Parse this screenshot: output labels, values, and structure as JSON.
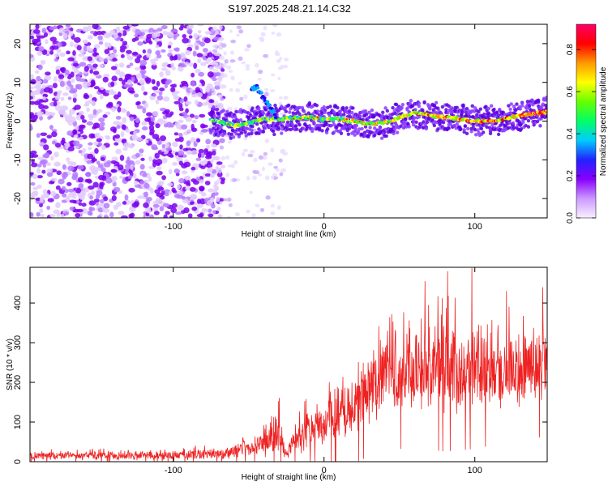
{
  "title": "S197.2025.248.21.14.C32",
  "chart_data": [
    {
      "type": "heatmap",
      "name": "spectrogram",
      "xlabel": "Height of straight line (km)",
      "ylabel": "Frequency (Hz)",
      "xlim": [
        -195,
        148
      ],
      "ylim": [
        -25,
        25
      ],
      "xticks": [
        -100,
        0,
        100
      ],
      "xtick_labels": [
        "-100",
        "0",
        "100"
      ],
      "yticks": [
        -20,
        -10,
        0,
        10,
        20
      ],
      "ytick_labels": [
        "-20",
        "-10",
        "0",
        "10",
        "20"
      ],
      "colorbar": {
        "label": "Normalized spectral amplitude",
        "range": [
          0,
          0.92
        ],
        "ticks": [
          0.0,
          0.2,
          0.4,
          0.6,
          0.8
        ],
        "tick_labels": [
          "0.0",
          "0.2",
          "0.4",
          "0.6",
          "0.8"
        ],
        "colormap": [
          "#f8f0ff",
          "#cc99ff",
          "#8800ff",
          "#2222ff",
          "#00ccff",
          "#00ff66",
          "#66ff00",
          "#ffff00",
          "#ff9900",
          "#ff0000",
          "#ff0066"
        ]
      },
      "features": {
        "noise_region_x": [
          -195,
          -75
        ],
        "sparse_region_x": [
          -75,
          -25
        ],
        "signal_start_x": -75,
        "signal_line": {
          "x": [
            -75,
            -60,
            -50,
            -45,
            -40,
            -30,
            -20,
            -10,
            0,
            10,
            20,
            30,
            40,
            50,
            60,
            70,
            80,
            90,
            100,
            110,
            120,
            130,
            140,
            148
          ],
          "freq": [
            0.5,
            -1.2,
            -0.5,
            0.0,
            0.5,
            0.5,
            0.8,
            1.0,
            0.5,
            0.5,
            0.0,
            -0.8,
            -0.5,
            1.0,
            2.0,
            1.5,
            1.0,
            0.5,
            0.0,
            0.0,
            0.5,
            1.5,
            2.0,
            2.5
          ]
        },
        "branch_signal": {
          "x": [
            -48,
            -45,
            -42,
            -38,
            -35,
            -32
          ],
          "freq": [
            8.0,
            9.0,
            7.0,
            5.0,
            3.0,
            1.5
          ]
        }
      }
    },
    {
      "type": "line",
      "name": "snr",
      "xlabel": "Height of straight line (km)",
      "ylabel": "SNR (10 * v/v)",
      "xlim": [
        -195,
        148
      ],
      "ylim": [
        0,
        490
      ],
      "xticks": [
        -100,
        0,
        100
      ],
      "xtick_labels": [
        "-100",
        "0",
        "100"
      ],
      "yticks": [
        0,
        100,
        200,
        300,
        400
      ],
      "ytick_labels": [
        "0",
        "100",
        "200",
        "300",
        "400"
      ],
      "color": "#ee2222",
      "envelope": {
        "x": [
          -195,
          -150,
          -100,
          -75,
          -60,
          -45,
          -35,
          -30,
          -27,
          -25,
          -20,
          -15,
          -10,
          0,
          10,
          20,
          30,
          40,
          60,
          80,
          100,
          120,
          148
        ],
        "mean": [
          15,
          15,
          16,
          20,
          25,
          35,
          55,
          70,
          40,
          20,
          55,
          70,
          80,
          100,
          120,
          150,
          190,
          220,
          230,
          235,
          230,
          235,
          240
        ],
        "spread": [
          9,
          9,
          10,
          12,
          15,
          22,
          35,
          55,
          25,
          15,
          30,
          40,
          45,
          50,
          60,
          70,
          80,
          85,
          90,
          95,
          90,
          85,
          80
        ]
      },
      "peaks": [
        {
          "x": 82,
          "y": 480
        },
        {
          "x": 98,
          "y": 488
        },
        {
          "x": 67,
          "y": 455
        },
        {
          "x": 145,
          "y": 440
        },
        {
          "x": 121,
          "y": 430
        }
      ]
    }
  ]
}
